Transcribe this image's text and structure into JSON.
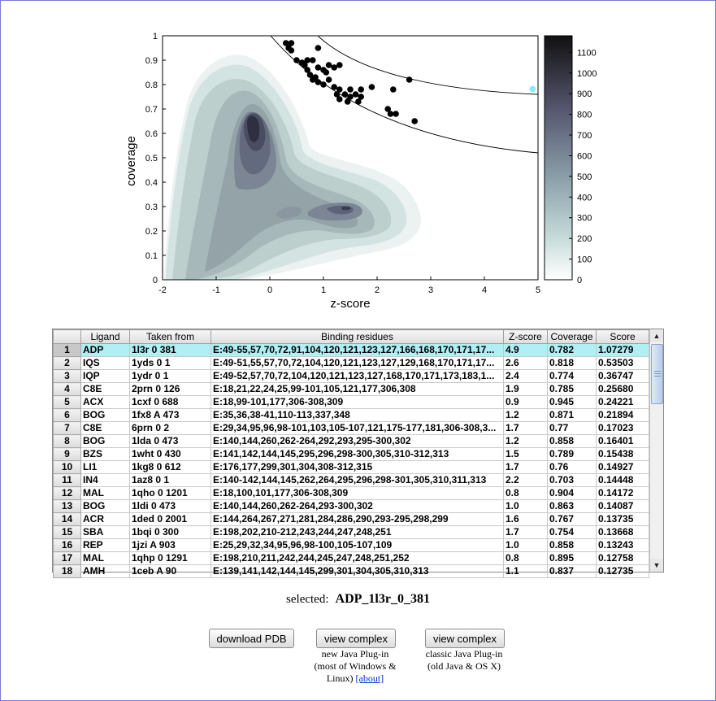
{
  "chart_data": {
    "type": "scatter",
    "title": "",
    "xlabel": "z-score",
    "ylabel": "coverage",
    "xlim": [
      -2,
      5
    ],
    "ylim": [
      0,
      1
    ],
    "x_ticks": [
      "-2",
      "-1",
      "0",
      "1",
      "2",
      "3",
      "4",
      "5"
    ],
    "y_ticks": [
      "0",
      "0.1",
      "0.2",
      "0.3",
      "0.4",
      "0.5",
      "0.6",
      "0.7",
      "0.8",
      "0.9",
      "1"
    ],
    "colorbar_ticks": [
      "0",
      "100",
      "200",
      "300",
      "400",
      "500",
      "600",
      "700",
      "800",
      "900",
      "1000",
      "1100"
    ],
    "colorbar_range": [
      0,
      1180
    ],
    "background": "density contour (gray-teal shades), peaks near (-0.5, 0.71) and (1.5, 0.30)",
    "points": [
      {
        "x": 0.3,
        "y": 0.97
      },
      {
        "x": 0.4,
        "y": 0.97
      },
      {
        "x": 0.35,
        "y": 0.95
      },
      {
        "x": 0.4,
        "y": 0.94
      },
      {
        "x": 0.9,
        "y": 0.95
      },
      {
        "x": 0.5,
        "y": 0.9
      },
      {
        "x": 0.6,
        "y": 0.89
      },
      {
        "x": 0.7,
        "y": 0.9
      },
      {
        "x": 0.8,
        "y": 0.9
      },
      {
        "x": 0.65,
        "y": 0.88
      },
      {
        "x": 0.7,
        "y": 0.86
      },
      {
        "x": 0.75,
        "y": 0.84
      },
      {
        "x": 0.85,
        "y": 0.83
      },
      {
        "x": 0.9,
        "y": 0.87
      },
      {
        "x": 1.0,
        "y": 0.86
      },
      {
        "x": 1.1,
        "y": 0.88
      },
      {
        "x": 1.2,
        "y": 0.87
      },
      {
        "x": 1.3,
        "y": 0.88
      },
      {
        "x": 0.8,
        "y": 0.82
      },
      {
        "x": 0.9,
        "y": 0.81
      },
      {
        "x": 1.0,
        "y": 0.8
      },
      {
        "x": 1.05,
        "y": 0.85
      },
      {
        "x": 1.1,
        "y": 0.82
      },
      {
        "x": 1.2,
        "y": 0.79
      },
      {
        "x": 1.3,
        "y": 0.78
      },
      {
        "x": 1.25,
        "y": 0.76
      },
      {
        "x": 1.3,
        "y": 0.74
      },
      {
        "x": 1.4,
        "y": 0.76
      },
      {
        "x": 1.45,
        "y": 0.73
      },
      {
        "x": 1.5,
        "y": 0.78
      },
      {
        "x": 1.5,
        "y": 0.75
      },
      {
        "x": 1.6,
        "y": 0.76
      },
      {
        "x": 1.7,
        "y": 0.78
      },
      {
        "x": 1.7,
        "y": 0.75
      },
      {
        "x": 1.65,
        "y": 0.73
      },
      {
        "x": 1.9,
        "y": 0.79
      },
      {
        "x": 2.2,
        "y": 0.7
      },
      {
        "x": 2.3,
        "y": 0.78
      },
      {
        "x": 2.25,
        "y": 0.68
      },
      {
        "x": 2.35,
        "y": 0.68
      },
      {
        "x": 2.6,
        "y": 0.82
      },
      {
        "x": 2.7,
        "y": 0.65
      }
    ],
    "highlight_point": {
      "x": 4.9,
      "y": 0.782,
      "color": "#7ff0f4"
    },
    "reference_curves": [
      "outer arc",
      "inner arc"
    ]
  },
  "table": {
    "headers": [
      "",
      "Ligand",
      "Taken from",
      "Binding residues",
      "Z-score",
      "Coverage",
      "Score"
    ],
    "rows": [
      [
        "1",
        "ADP",
        "1l3r 0 381",
        "E:49-55,57,70,72,91,104,120,121,123,127,166,168,170,171,17...",
        "4.9",
        "0.782",
        "1.07279"
      ],
      [
        "2",
        "IQS",
        "1yds 0 1",
        "E:49-51,55,57,70,72,104,120,121,123,127,129,168,170,171,17...",
        "2.6",
        "0.818",
        "0.53503"
      ],
      [
        "3",
        "IQP",
        "1ydr 0 1",
        "E:49-52,57,70,72,104,120,121,123,127,168,170,171,173,183,1...",
        "2.4",
        "0.774",
        "0.36747"
      ],
      [
        "4",
        "C8E",
        "2prn 0 126",
        "E:18,21,22,24,25,99-101,105,121,177,306,308",
        "1.9",
        "0.785",
        "0.25680"
      ],
      [
        "5",
        "ACX",
        "1cxf 0 688",
        "E:18,99-101,177,306-308,309",
        "0.9",
        "0.945",
        "0.24221"
      ],
      [
        "6",
        "BOG",
        "1fx8 A 473",
        "E:35,36,38-41,110-113,337,348",
        "1.2",
        "0.871",
        "0.21894"
      ],
      [
        "7",
        "C8E",
        "6prn 0 2",
        "E:29,34,95,96,98-101,103,105-107,121,175-177,181,306-308,3...",
        "1.7",
        "0.77",
        "0.17023"
      ],
      [
        "8",
        "BOG",
        "1lda 0 473",
        "E:140,144,260,262-264,292,293,295-300,302",
        "1.2",
        "0.858",
        "0.16401"
      ],
      [
        "9",
        "BZS",
        "1wht 0 430",
        "E:141,142,144,145,295,296,298-300,305,310-312,313",
        "1.5",
        "0.789",
        "0.15438"
      ],
      [
        "10",
        "LI1",
        "1kg8 0 612",
        "E:176,177,299,301,304,308-312,315",
        "1.7",
        "0.76",
        "0.14927"
      ],
      [
        "11",
        "IN4",
        "1az8 0 1",
        "E:140-142,144,145,262,264,295,296,298-301,305,310,311,313",
        "2.2",
        "0.703",
        "0.14448"
      ],
      [
        "12",
        "MAL",
        "1qho 0 1201",
        "E:18,100,101,177,306-308,309",
        "0.8",
        "0.904",
        "0.14172"
      ],
      [
        "13",
        "BOG",
        "1ldi 0 473",
        "E:140,144,260,262-264,293-300,302",
        "1.0",
        "0.863",
        "0.14087"
      ],
      [
        "14",
        "ACR",
        "1ded 0 2001",
        "E:144,264,267,271,281,284,286,290,293-295,298,299",
        "1.6",
        "0.767",
        "0.13735"
      ],
      [
        "15",
        "SBA",
        "1bqi 0 300",
        "E:198,202,210-212,243,244,247,248,251",
        "1.7",
        "0.754",
        "0.13668"
      ],
      [
        "16",
        "REP",
        "1jzi A 903",
        "E:25,29,32,34,95,96,98-100,105-107,109",
        "1.0",
        "0.858",
        "0.13243"
      ],
      [
        "17",
        "MAL",
        "1qhp 0 1291",
        "E:198,210,211,242,244,245,247,248,251,252",
        "0.8",
        "0.895",
        "0.12758"
      ],
      [
        "18",
        "AMH",
        "1ceb A 90",
        "E:139,141,142,144,145,299,301,304,305,310,313",
        "1.1",
        "0.837",
        "0.12735"
      ]
    ],
    "selected_row": 1,
    "highlight_color": "#b0f0f4"
  },
  "selected": {
    "label": "selected:",
    "value": "ADP_1l3r_0_381"
  },
  "buttons": {
    "download": "download PDB",
    "view_new": "view complex",
    "view_classic": "view complex"
  },
  "notes": {
    "new_line1": "new Java Plug-in",
    "new_line2": "(most of Windows &",
    "new_line3": "Linux)",
    "about": "[about]",
    "classic_line1": "classic Java Plug-in",
    "classic_line2": "(old Java & OS X)"
  }
}
